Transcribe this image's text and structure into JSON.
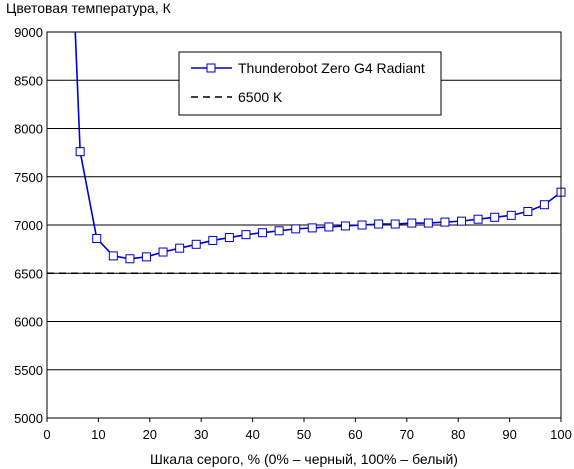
{
  "chart_data": {
    "type": "line",
    "title": "",
    "ylabel": "Цветовая температура, К",
    "xlabel": "Шкала серого, % (0% – черный, 100% – белый)",
    "xlim": [
      0,
      100
    ],
    "ylim": [
      5000,
      9000
    ],
    "x_ticks": [
      0,
      10,
      20,
      30,
      40,
      50,
      60,
      70,
      80,
      90,
      100
    ],
    "y_ticks": [
      5000,
      5500,
      6000,
      6500,
      7000,
      7500,
      8000,
      8500,
      9000
    ],
    "grid": "horizontal",
    "legend_position": "top-right",
    "series": [
      {
        "name": "Thunderobot Zero G4 Radiant",
        "color": "#0000cc",
        "marker": "square",
        "line_start": [
          5.5,
          9000
        ],
        "points": [
          [
            6.45,
            7760
          ],
          [
            9.68,
            6860
          ],
          [
            12.9,
            6680
          ],
          [
            16.13,
            6650
          ],
          [
            19.35,
            6670
          ],
          [
            22.58,
            6720
          ],
          [
            25.81,
            6760
          ],
          [
            29.03,
            6800
          ],
          [
            32.26,
            6840
          ],
          [
            35.48,
            6870
          ],
          [
            38.71,
            6900
          ],
          [
            41.94,
            6920
          ],
          [
            45.16,
            6940
          ],
          [
            48.39,
            6960
          ],
          [
            51.61,
            6970
          ],
          [
            54.84,
            6980
          ],
          [
            58.06,
            6990
          ],
          [
            61.29,
            7000
          ],
          [
            64.52,
            7010
          ],
          [
            67.74,
            7010
          ],
          [
            70.97,
            7020
          ],
          [
            74.19,
            7020
          ],
          [
            77.42,
            7030
          ],
          [
            80.65,
            7040
          ],
          [
            83.87,
            7060
          ],
          [
            87.1,
            7080
          ],
          [
            90.32,
            7100
          ],
          [
            93.55,
            7140
          ],
          [
            96.77,
            7210
          ],
          [
            100,
            7340
          ]
        ]
      },
      {
        "name": "6500 K",
        "color": "#000000",
        "style": "dashed",
        "value": 6500
      }
    ]
  }
}
